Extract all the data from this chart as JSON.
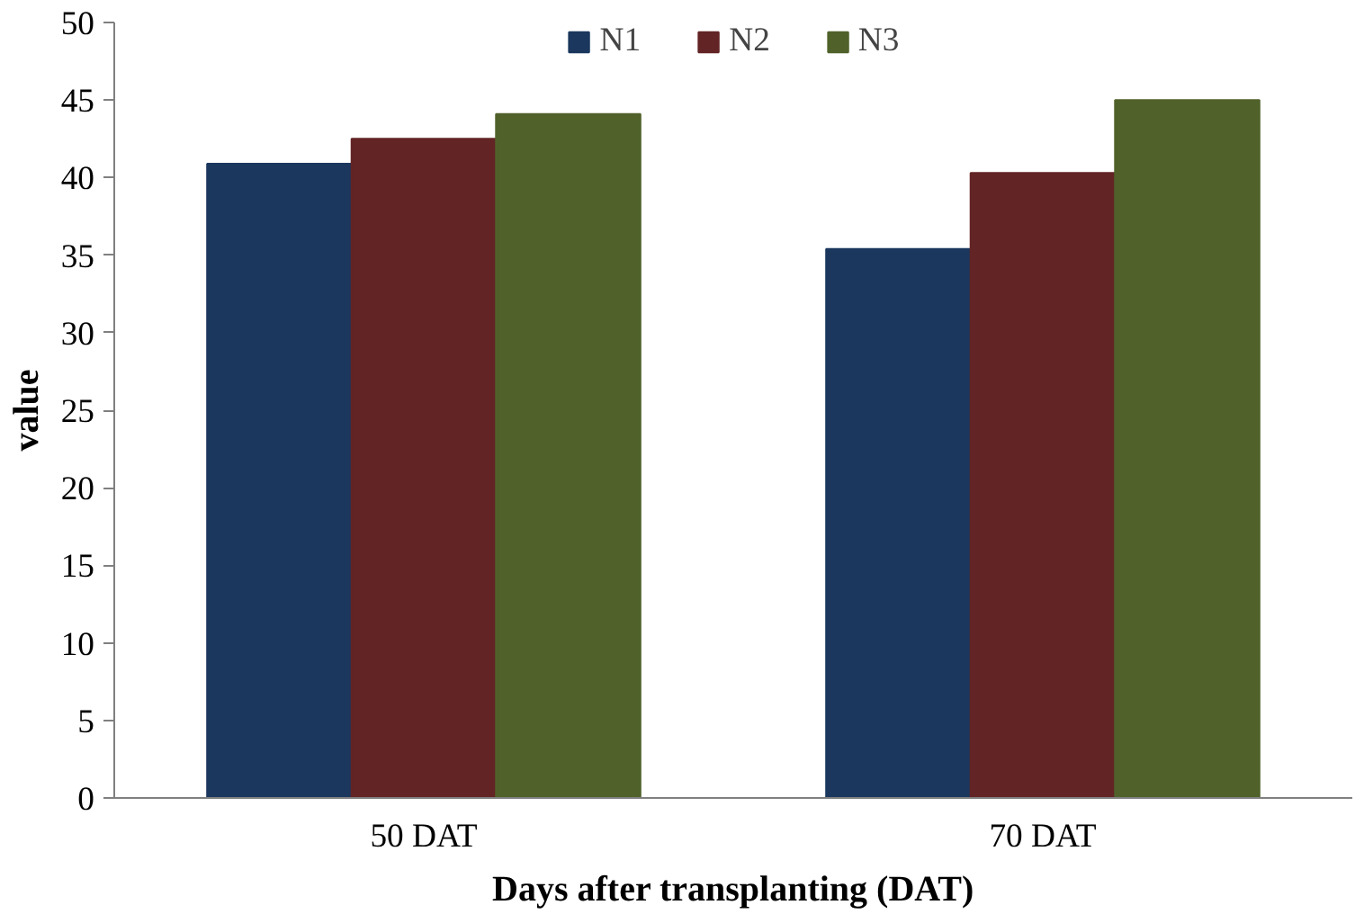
{
  "chart_data": {
    "type": "bar",
    "xlabel": "Days after transplanting (DAT)",
    "ylabel": "value",
    "categories": [
      "50 DAT",
      "70 DAT"
    ],
    "series": [
      {
        "name": "N1",
        "color": "#1b375e",
        "values": [
          40.9,
          35.4
        ]
      },
      {
        "name": "N2",
        "color": "#632425",
        "values": [
          42.5,
          40.3
        ]
      },
      {
        "name": "N3",
        "color": "#50622a",
        "values": [
          44.1,
          45.0
        ]
      }
    ],
    "ylim": [
      0,
      50
    ],
    "yticks": [
      0,
      5,
      10,
      15,
      20,
      25,
      30,
      35,
      40,
      45,
      50
    ],
    "grid": false,
    "legend": "top"
  }
}
